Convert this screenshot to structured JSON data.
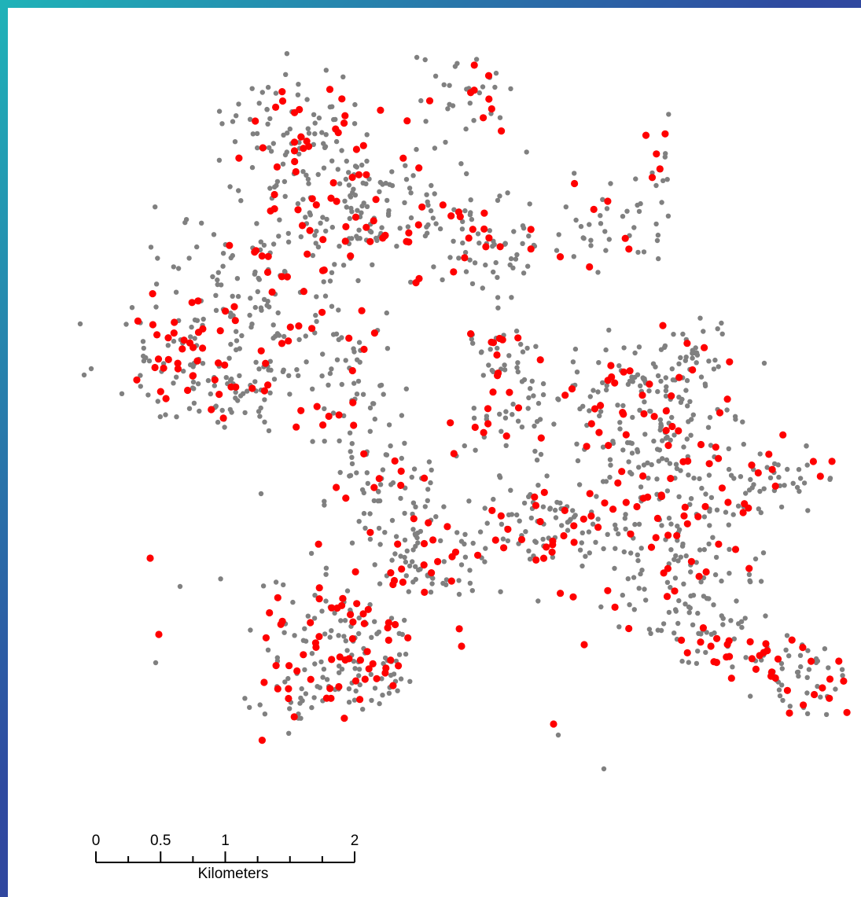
{
  "map": {
    "colors": {
      "background": "#ffffff",
      "sampled_points": "#ff0000",
      "other_points": "#808080",
      "scale_bar": "#000000"
    },
    "point_layers": [
      {
        "id": "gray",
        "description_name": "other-point"
      },
      {
        "id": "red",
        "description_name": "highlighted-point"
      }
    ]
  },
  "scale_bar": {
    "tick_labels": [
      "0",
      "0.5",
      "1",
      "2"
    ],
    "tick_values": [
      0,
      0.5,
      1,
      2
    ],
    "unit_label": "Kilometers",
    "max_value": 2,
    "minor_divisions": 8
  }
}
